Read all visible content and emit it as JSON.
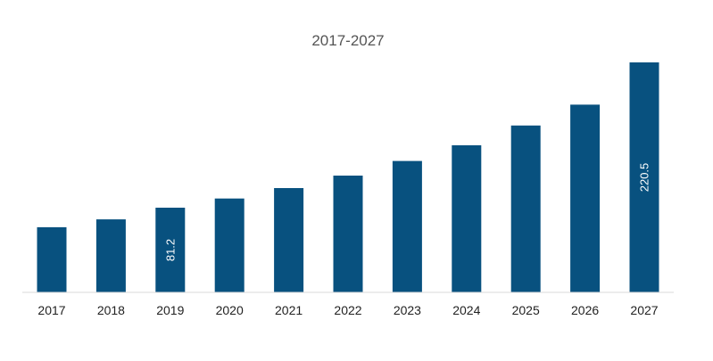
{
  "chart_data": {
    "type": "bar",
    "title": "2017-2027",
    "xlabel": "",
    "ylabel": "",
    "categories": [
      "2017",
      "2018",
      "2019",
      "2020",
      "2021",
      "2022",
      "2023",
      "2024",
      "2025",
      "2026",
      "2027"
    ],
    "values": [
      62.5,
      70.0,
      81.2,
      90.0,
      100.0,
      112.0,
      126.0,
      141.0,
      160.0,
      180.0,
      220.5
    ],
    "data_labels": [
      {
        "category": "2019",
        "text": "81.2"
      },
      {
        "category": "2027",
        "text": "220.5"
      }
    ],
    "ylim": [
      0,
      220.5
    ],
    "grid": false,
    "legend": "none",
    "bar_color": "#08517F",
    "axis_color": "#d9d9d9"
  }
}
